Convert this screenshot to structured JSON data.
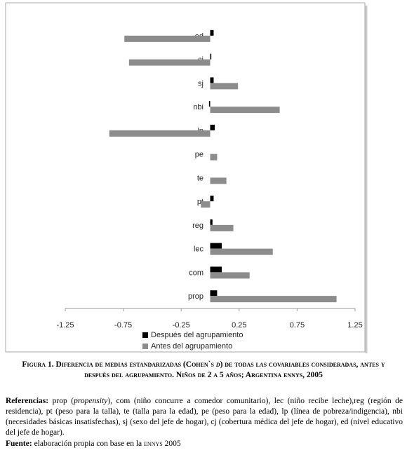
{
  "chart_data": {
    "type": "bar",
    "orientation": "horizontal",
    "categories": [
      "ed",
      "cj",
      "sj",
      "nbi",
      "lp",
      "pe",
      "te",
      "pt",
      "reg",
      "lec",
      "com",
      "prop"
    ],
    "series": [
      {
        "name": "Después del agrupamiento",
        "color": "#000000",
        "values": [
          0.03,
          0.01,
          0.03,
          -0.01,
          0.04,
          0,
          0,
          0.03,
          0.02,
          0.1,
          0.1,
          0.06
        ]
      },
      {
        "name": "Antes del agrupamiento",
        "color": "#8c8c8c",
        "values": [
          -0.74,
          -0.7,
          0.24,
          0.6,
          -0.87,
          0.06,
          0.14,
          -0.08,
          0.2,
          0.54,
          0.34,
          1.09
        ]
      }
    ],
    "xlim": [
      -1.25,
      1.25
    ],
    "xticks": [
      -1.25,
      -0.75,
      -0.25,
      0.25,
      0.75,
      1.25
    ],
    "legend": "bottom"
  },
  "caption": {
    "label": "Figura 1.",
    "text_1": "Diferencia de medias estandarizadas (Cohen`s ",
    "italic": "d",
    "text_2": ") de todas las covariables consideradas, antes y después del agrupamiento. Niños de 2 a 5 años; Argentina ennys, 2005"
  },
  "references": {
    "label": "Referencias:",
    "text_1": "prop (",
    "italic": "propensity",
    "text_2": "), com (niño concurre a comedor comunitario), lec (niño recibe leche),reg (región de residencia), pt (peso para la talla), te (talla para la edad), pe (peso para la edad), lp (línea de pobreza/indigencia), nbi (necesidades básicas insatisfechas), sj (sexo del jefe de hogar), cj (cobertura médica del jefe de hogar), ed (nivel educativo del jefe de hogar)."
  },
  "source": {
    "label": "Fuente:",
    "text_1": "elaboración propia con base en la ",
    "small_caps": "ennys",
    "text_2": " 2005"
  }
}
